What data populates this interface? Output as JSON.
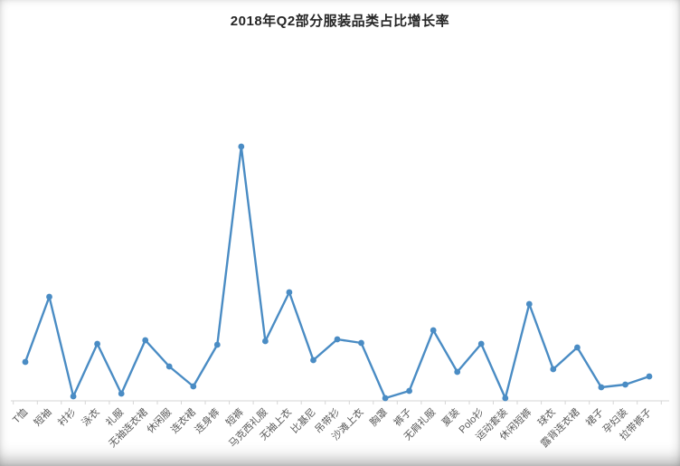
{
  "chart_data": {
    "type": "line",
    "title": "2018年Q2部分服装品类占比增长率",
    "xlabel": "",
    "ylabel": "",
    "legend": "none",
    "grid": false,
    "marker": "circle",
    "line_color": "#4a8cc4",
    "axis_color": "#d6d6d6",
    "label_color": "#595959",
    "x_tick_rotation": 45,
    "ylim": [
      0,
      300
    ],
    "categories": [
      "T恤",
      "短袖",
      "衬衫",
      "泳衣",
      "礼服",
      "无袖连衣裙",
      "休闲服",
      "连衣裙",
      "连身裤",
      "短裤",
      "马克西礼服",
      "无袖上衣",
      "比基尼",
      "吊带衫",
      "沙滩上衣",
      "胸罩",
      "裤子",
      "无肩礼服",
      "夏装",
      "Polo衫",
      "运动套装",
      "休闲短裤",
      "球衣",
      "露背连衣裙",
      "裙子",
      "孕妇装",
      "拉带裤子"
    ],
    "values": [
      43,
      115,
      5,
      63,
      8,
      67,
      38,
      16,
      62,
      281,
      66,
      120,
      45,
      68,
      64,
      3,
      11,
      78,
      32,
      63,
      3,
      107,
      35,
      59,
      15,
      18,
      27
    ]
  }
}
